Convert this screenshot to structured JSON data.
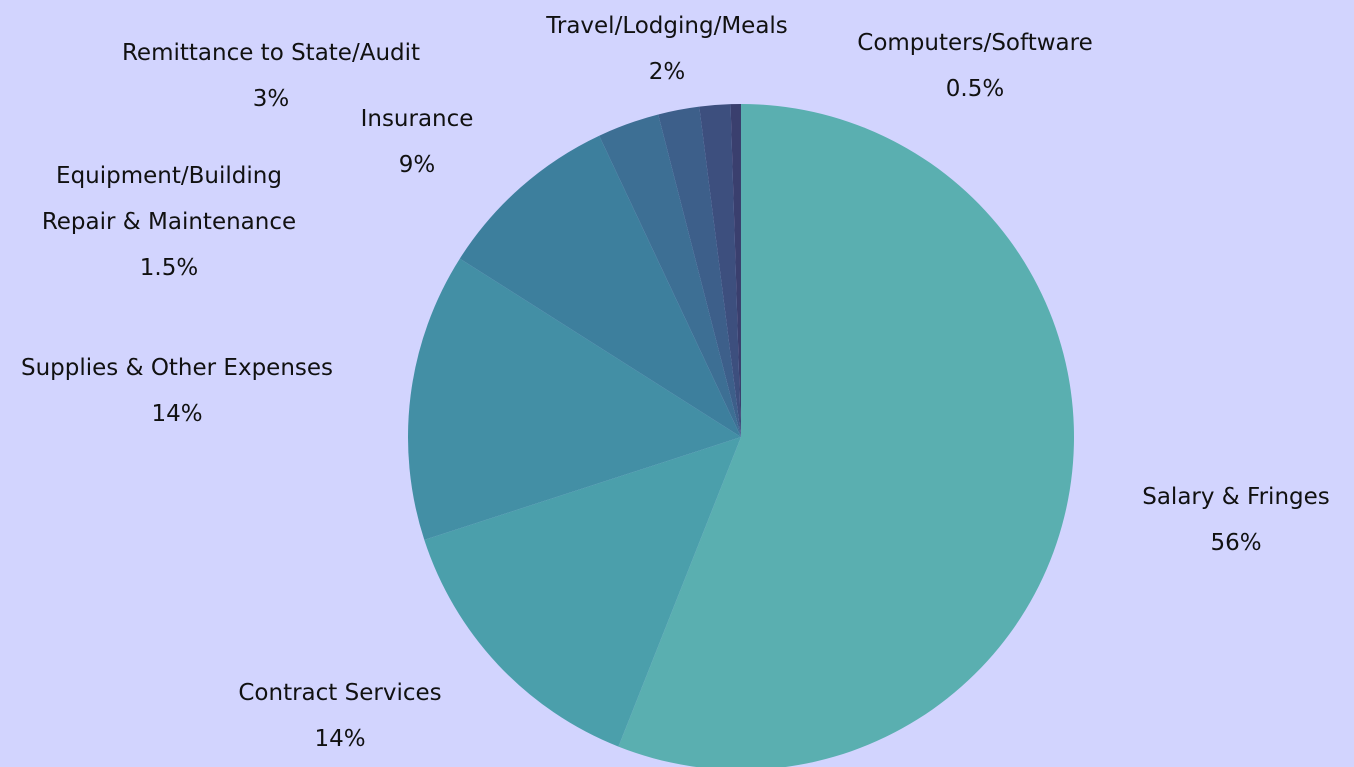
{
  "chart_data": {
    "type": "pie",
    "categories": [
      "Salary & Fringes",
      "Contract Services",
      "Supplies & Other Expenses",
      "Insurance",
      "Remittance to State/Audit",
      "Travel/Lodging/Meals",
      "Equipment/Building Repair & Maintenance",
      "Computers/Software"
    ],
    "values": [
      56,
      14,
      14,
      9,
      3,
      2,
      1.5,
      0.5
    ],
    "value_labels": [
      "56%",
      "14%",
      "14%",
      "9%",
      "3%",
      "2%",
      "1.5%",
      "0.5%"
    ],
    "colors": [
      "#5aafb0",
      "#4b9fab",
      "#438fa5",
      "#3d7f9d",
      "#3d6f94",
      "#3d5f8a",
      "#3d4f7e",
      "#3a3f6e"
    ]
  }
}
